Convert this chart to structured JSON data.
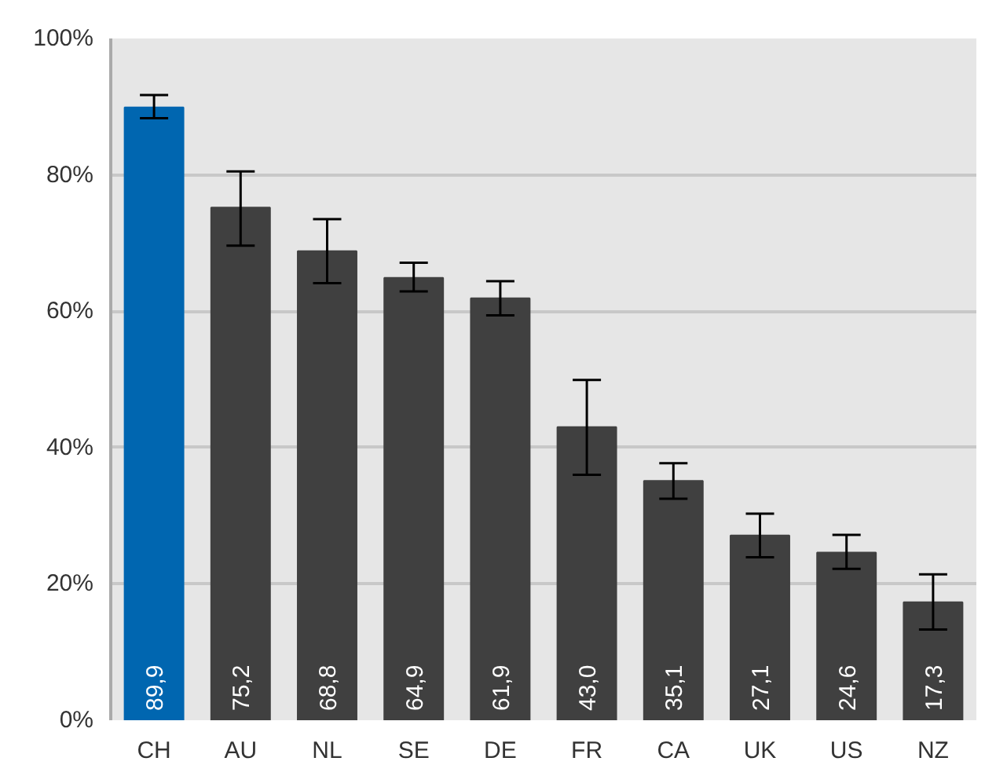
{
  "chart_data": {
    "type": "bar",
    "categories": [
      "CH",
      "AU",
      "NL",
      "SE",
      "DE",
      "FR",
      "CA",
      "UK",
      "US",
      "NZ"
    ],
    "values": [
      89.9,
      75.2,
      68.8,
      64.9,
      61.9,
      43.0,
      35.1,
      27.1,
      24.6,
      17.3
    ],
    "value_labels": [
      "89,9",
      "75,2",
      "68,8",
      "64,9",
      "61,9",
      "43,0",
      "35,1",
      "27,1",
      "24,6",
      "17,3"
    ],
    "colors": [
      "#0066b0",
      "#404040",
      "#404040",
      "#404040",
      "#404040",
      "#404040",
      "#404040",
      "#404040",
      "#404040",
      "#404040"
    ],
    "errors": [
      [
        88.3,
        91.7
      ],
      [
        69.6,
        80.5
      ],
      [
        64.1,
        73.5
      ],
      [
        62.9,
        67.1
      ],
      [
        59.4,
        64.4
      ],
      [
        36.0,
        49.9
      ],
      [
        32.5,
        37.7
      ],
      [
        23.9,
        30.3
      ],
      [
        22.2,
        27.2
      ],
      [
        13.3,
        21.4
      ]
    ],
    "ylim": [
      0,
      100
    ],
    "yticks": [
      {
        "value": 0,
        "label": "0%"
      },
      {
        "value": 20,
        "label": "20%"
      },
      {
        "value": 40,
        "label": "40%"
      },
      {
        "value": 60,
        "label": "60%"
      },
      {
        "value": 80,
        "label": "80%"
      },
      {
        "value": 100,
        "label": "100%"
      }
    ],
    "grid": "y"
  }
}
